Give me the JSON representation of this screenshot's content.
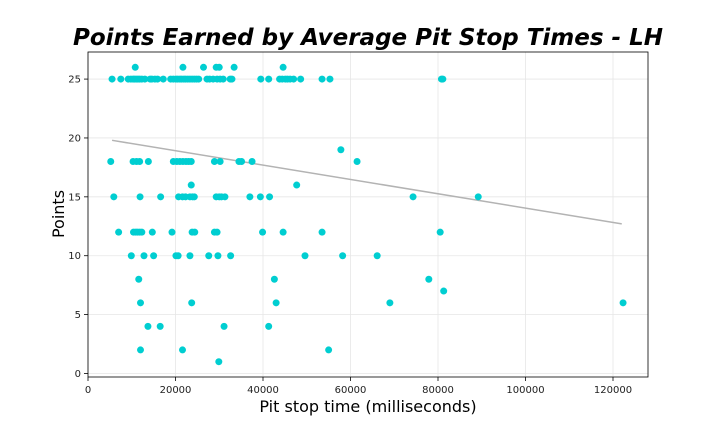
{
  "chart_data": {
    "type": "scatter",
    "title": "Points Earned by Average Pit Stop Times - LH",
    "xlabel": "Pit stop time (milliseconds)",
    "ylabel": "Points",
    "xlim": [
      0,
      128000
    ],
    "ylim": [
      -0.3,
      27.3
    ],
    "x_ticks": [
      0,
      20000,
      40000,
      60000,
      80000,
      100000,
      120000
    ],
    "y_ticks": [
      0,
      5,
      10,
      15,
      20,
      25
    ],
    "grid": true,
    "colors": {
      "points": "#00CED1",
      "trend": "#b3b3b3"
    },
    "trend_line": {
      "x": [
        5500,
        122000
      ],
      "y": [
        19.8,
        12.7
      ]
    },
    "series": [
      {
        "x": [
          5500,
          7500,
          9200,
          9800,
          10300,
          10600,
          11000,
          11400,
          11800,
          12300,
          13000,
          14200,
          14600,
          15300,
          15900,
          17200,
          18900,
          19500,
          20100,
          20500,
          21000,
          21400,
          21900,
          22300,
          22800,
          23300,
          23800,
          24300,
          24800,
          25300,
          27200,
          27800,
          28600,
          29500,
          30200,
          30900,
          32500,
          32900,
          39500,
          41300,
          43800,
          44400,
          45100,
          45600,
          46200,
          47000,
          48600,
          53500,
          55300,
          80800,
          81100,
          10800,
          21700,
          26400,
          29300,
          30000,
          33400,
          44600
        ],
        "y": [
          25,
          25,
          25,
          25,
          25,
          25,
          25,
          25,
          25,
          25,
          25,
          25,
          25,
          25,
          25,
          25,
          25,
          25,
          25,
          25,
          25,
          25,
          25,
          25,
          25,
          25,
          25,
          25,
          25,
          25,
          25,
          25,
          25,
          25,
          25,
          25,
          25,
          25,
          25,
          25,
          25,
          25,
          25,
          25,
          25,
          25,
          25,
          25,
          25,
          25,
          25,
          26,
          26,
          26,
          26,
          26,
          26,
          26
        ]
      },
      {
        "x": [
          57800,
          5200,
          10300,
          11100,
          11800,
          13800,
          19500,
          20300,
          21000,
          21700,
          22400,
          23000,
          23600,
          28900,
          30200,
          34500,
          35100,
          37500,
          61500,
          23600,
          47700,
          5900,
          11900,
          16600,
          20700,
          21600,
          22300,
          23300,
          23900,
          24300,
          29300,
          30000,
          30500,
          31300,
          37000,
          39400,
          41500,
          74300,
          89200
        ],
        "y": [
          19,
          18,
          18,
          18,
          18,
          18,
          18,
          18,
          18,
          18,
          18,
          18,
          18,
          18,
          18,
          18,
          18,
          18,
          18,
          16,
          16,
          15,
          15,
          15,
          15,
          15,
          15,
          15,
          15,
          15,
          15,
          15,
          15,
          15,
          15,
          15,
          15,
          15,
          15
        ]
      },
      {
        "x": [
          7000,
          10400,
          10900,
          11300,
          11800,
          12300,
          14700,
          19200,
          23800,
          24400,
          28900,
          29500,
          39900,
          44600,
          53500,
          80500,
          9900,
          12800,
          15000,
          20100,
          20600,
          23300,
          27600,
          29700,
          32600,
          49600,
          58200,
          66100,
          42600,
          77900,
          81300,
          11600,
          12000,
          23700,
          43000,
          69000,
          122300,
          13700,
          16500,
          31100,
          41300,
          12000,
          21600,
          55000,
          29900
        ],
        "y": [
          12,
          12,
          12,
          12,
          12,
          12,
          12,
          12,
          12,
          12,
          12,
          12,
          12,
          12,
          12,
          12,
          10,
          10,
          10,
          10,
          10,
          10,
          10,
          10,
          10,
          10,
          10,
          10,
          8,
          8,
          7,
          8,
          6,
          6,
          6,
          6,
          6,
          4,
          4,
          4,
          4,
          2,
          2,
          2,
          1
        ]
      }
    ]
  }
}
